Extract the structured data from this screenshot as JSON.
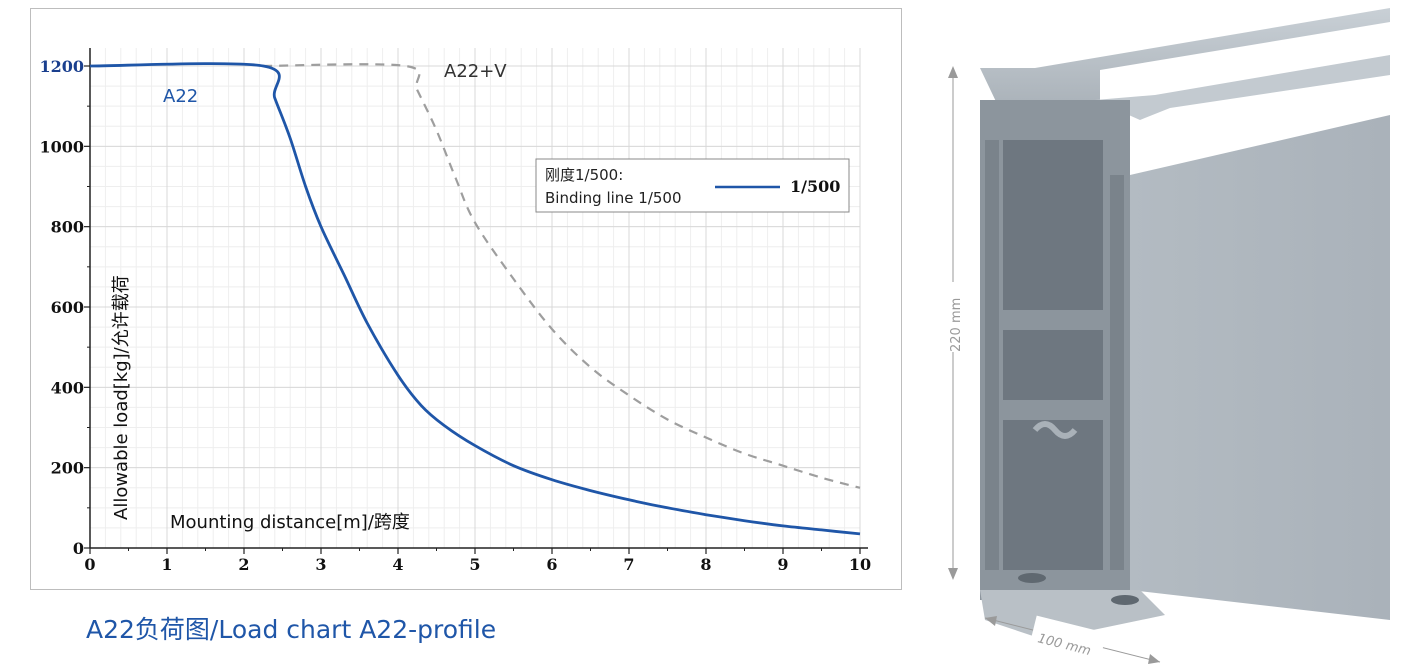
{
  "caption": "A22负荷图/Load chart A22-profile",
  "chart_data": {
    "type": "line",
    "title": "",
    "xlabel": "Mounting distance[m]/跨度",
    "ylabel": "Allowable load[kg]/允许载荷",
    "xlim": [
      0,
      10
    ],
    "ylim": [
      0,
      1200
    ],
    "x_ticks": [
      "0",
      "1",
      "2",
      "3",
      "4",
      "5",
      "6",
      "7",
      "8",
      "9",
      "10"
    ],
    "y_ticks": [
      "0",
      "200",
      "400",
      "600",
      "800",
      "1000",
      "1200"
    ],
    "grid": true,
    "series": [
      {
        "name": "A22",
        "color": "#1f56a8",
        "style": "solid",
        "x": [
          0,
          2.25,
          2.4,
          2.6,
          2.8,
          3.0,
          3.3,
          3.6,
          4.0,
          4.3,
          4.6,
          5.0,
          5.5,
          6.0,
          6.5,
          7.0,
          7.5,
          8.0,
          8.5,
          9.0,
          9.5,
          10.0
        ],
        "y": [
          1200,
          1200,
          1120,
          1020,
          900,
          800,
          680,
          560,
          430,
          355,
          305,
          255,
          205,
          170,
          143,
          120,
          100,
          83,
          68,
          55,
          45,
          35
        ]
      },
      {
        "name": "A22+V",
        "color": "#9e9e9e",
        "style": "dashed",
        "x": [
          2.25,
          4.1,
          4.25,
          4.5,
          4.75,
          5.0,
          5.5,
          6.0,
          6.5,
          7.0,
          7.5,
          8.0,
          8.5,
          9.0,
          9.5,
          10.0
        ],
        "y": [
          1200,
          1200,
          1140,
          1040,
          920,
          810,
          670,
          545,
          450,
          380,
          320,
          275,
          235,
          205,
          175,
          150
        ]
      }
    ],
    "legend": {
      "position": "center-right",
      "text_line1": "刚度1/500:",
      "text_line2": "Binding line 1/500",
      "key_label": "1/500"
    }
  },
  "dimensions": {
    "height_label": "220 mm",
    "width_label": "100 mm"
  }
}
